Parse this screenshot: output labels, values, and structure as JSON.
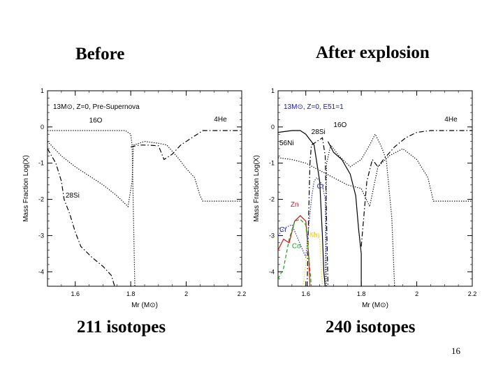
{
  "slide": {
    "before_heading": "Before",
    "after_heading": "After explosion",
    "before_caption": "211 isotopes",
    "after_caption": "240 isotopes",
    "page_number": "16"
  },
  "chart_data": [
    {
      "type": "line",
      "title": "13M⊙, Z=0, Pre-Supernova",
      "xlabel": "Mr (M⊙)",
      "ylabel": "Mass Fraction Log(X)",
      "xlim": [
        1.5,
        2.2
      ],
      "ylim": [
        -4.4,
        1
      ],
      "xticks": [
        1.6,
        1.8,
        2,
        2.2
      ],
      "yticks": [
        1,
        0,
        -1,
        -2,
        -3,
        -4
      ],
      "series": [
        {
          "name": "16O",
          "color": "#000000",
          "dash": "1.3,2",
          "label_at": [
            1.65,
            0.12
          ],
          "points": [
            [
              1.5,
              -0.1
            ],
            [
              1.55,
              -0.1
            ],
            [
              1.6,
              -0.1
            ],
            [
              1.65,
              -0.1
            ],
            [
              1.7,
              -0.1
            ],
            [
              1.75,
              -0.1
            ],
            [
              1.78,
              -0.1
            ],
            [
              1.8,
              -0.2
            ],
            [
              1.805,
              -0.5
            ],
            [
              1.81,
              -2.5
            ],
            [
              1.815,
              -4.5
            ]
          ]
        },
        {
          "name": "4He",
          "color": "#000000",
          "dash": "1.3,2",
          "label_at": [
            2.1,
            0.15
          ],
          "points": [
            [
              1.5,
              -0.4
            ],
            [
              1.55,
              -0.8
            ],
            [
              1.6,
              -1.1
            ],
            [
              1.65,
              -1.35
            ],
            [
              1.7,
              -1.6
            ],
            [
              1.75,
              -1.9
            ],
            [
              1.79,
              -2.2
            ],
            [
              1.805,
              -1.5
            ],
            [
              1.81,
              -0.5
            ],
            [
              1.85,
              -0.4
            ],
            [
              1.9,
              -0.45
            ],
            [
              1.93,
              -0.5
            ],
            [
              1.97,
              -0.85
            ],
            [
              2.0,
              -1.15
            ],
            [
              2.03,
              -1.4
            ],
            [
              2.05,
              -1.9
            ],
            [
              2.06,
              -2.05
            ],
            [
              2.2,
              -2.05
            ]
          ]
        },
        {
          "name": "28Si",
          "color": "#000000",
          "dash": "7,3,1.5,3",
          "label_at": [
            1.565,
            -1.95
          ],
          "points": [
            [
              1.5,
              -0.6
            ],
            [
              1.53,
              -1.0
            ],
            [
              1.55,
              -1.5
            ],
            [
              1.56,
              -2.0
            ],
            [
              1.58,
              -2.4
            ],
            [
              1.6,
              -2.9
            ],
            [
              1.62,
              -3.3
            ],
            [
              1.66,
              -3.6
            ],
            [
              1.7,
              -3.85
            ],
            [
              1.73,
              -4.1
            ],
            [
              1.75,
              -4.6
            ]
          ]
        },
        {
          "name": "",
          "color": "#000000",
          "dash": "7,3,1.5,3",
          "points": [
            [
              1.8,
              -0.55
            ],
            [
              1.83,
              -0.5
            ],
            [
              1.86,
              -0.5
            ],
            [
              1.9,
              -0.52
            ],
            [
              1.92,
              -0.9
            ],
            [
              1.95,
              -0.75
            ],
            [
              1.98,
              -0.5
            ],
            [
              2.02,
              -0.3
            ],
            [
              2.06,
              -0.1
            ],
            [
              2.1,
              -0.1
            ],
            [
              2.2,
              -0.1
            ]
          ]
        }
      ]
    },
    {
      "type": "line",
      "title": "13M⊙, Z=0, E51=1",
      "title_color": "#1515bb",
      "xlabel": "Mr (M⊙)",
      "ylabel": "Mass Fraction Log(X)",
      "xlim": [
        1.5,
        2.2
      ],
      "ylim": [
        -4.4,
        1
      ],
      "xticks": [
        1.6,
        1.8,
        2,
        2.2
      ],
      "yticks": [
        1,
        0,
        -1,
        -2,
        -3,
        -4
      ],
      "series": [
        {
          "name": "56Ni",
          "color": "#000000",
          "dash": "",
          "label_at": [
            1.505,
            -0.5
          ],
          "points": [
            [
              1.5,
              -0.15
            ],
            [
              1.55,
              -0.1
            ],
            [
              1.58,
              -0.1
            ],
            [
              1.6,
              -0.2
            ],
            [
              1.63,
              -0.5
            ],
            [
              1.65,
              -1.5
            ],
            [
              1.66,
              -3.0
            ],
            [
              1.665,
              -4.0
            ],
            [
              1.67,
              -4.4
            ]
          ]
        },
        {
          "name": "28Si",
          "color": "#000000",
          "dash": "7,3,1.5,3",
          "label_at": [
            1.62,
            -0.2
          ],
          "points": [
            [
              1.605,
              -4.4
            ],
            [
              1.61,
              -2.5
            ],
            [
              1.615,
              -1.0
            ],
            [
              1.62,
              -0.5
            ],
            [
              1.64,
              -0.4
            ],
            [
              1.66,
              -0.3
            ],
            [
              1.67,
              -0.8
            ],
            [
              1.68,
              -4.4
            ]
          ]
        },
        {
          "name": "16O",
          "color": "#000000",
          "dash": "1.3,2",
          "label_at": [
            1.7,
            0.0
          ],
          "points": [
            [
              1.67,
              -4.4
            ],
            [
              1.675,
              -1.0
            ],
            [
              1.69,
              -0.5
            ],
            [
              1.72,
              -0.8
            ],
            [
              1.76,
              -1.1
            ],
            [
              1.8,
              -0.9
            ],
            [
              1.83,
              -0.5
            ],
            [
              1.85,
              -0.2
            ],
            [
              1.87,
              -0.5
            ],
            [
              1.89,
              -0.9
            ],
            [
              1.91,
              -2.5
            ],
            [
              1.92,
              -4.4
            ]
          ]
        },
        {
          "name": "4He",
          "color": "#000000",
          "dash": "1.3,2",
          "label_at": [
            2.1,
            0.15
          ],
          "points": [
            [
              1.5,
              -0.85
            ],
            [
              1.55,
              -0.9
            ],
            [
              1.6,
              -1.0
            ],
            [
              1.65,
              -1.2
            ],
            [
              1.7,
              -1.4
            ],
            [
              1.75,
              -1.6
            ],
            [
              1.8,
              -1.7
            ],
            [
              1.83,
              -2.2
            ],
            [
              1.86,
              -1.1
            ],
            [
              1.9,
              -0.8
            ],
            [
              1.95,
              -0.6
            ],
            [
              2.0,
              -0.9
            ],
            [
              2.04,
              -1.4
            ],
            [
              2.06,
              -2.05
            ],
            [
              2.2,
              -2.05
            ]
          ]
        },
        {
          "name": "",
          "color": "#000000",
          "dash": "7,3,1.5,3",
          "points": [
            [
              1.8,
              -3.3
            ],
            [
              1.82,
              -1.5
            ],
            [
              1.84,
              -0.9
            ],
            [
              1.86,
              -1.1
            ],
            [
              1.88,
              -0.9
            ],
            [
              1.92,
              -0.55
            ],
            [
              1.96,
              -0.3
            ],
            [
              2.0,
              -0.15
            ],
            [
              2.05,
              -0.1
            ],
            [
              2.1,
              -0.1
            ],
            [
              2.2,
              -0.1
            ]
          ]
        },
        {
          "name": "",
          "color": "#000000",
          "dash": "",
          "points": [
            [
              1.68,
              -0.4
            ],
            [
              1.7,
              -0.7
            ],
            [
              1.73,
              -0.9
            ],
            [
              1.76,
              -1.3
            ],
            [
              1.78,
              -1.9
            ],
            [
              1.79,
              -2.8
            ],
            [
              1.8,
              -3.5
            ],
            [
              1.8,
              -4.4
            ]
          ]
        },
        {
          "name": "Zn",
          "color": "#dd1111",
          "dash": "",
          "label_at": [
            1.545,
            -2.2
          ],
          "points": [
            [
              1.5,
              -3.4
            ],
            [
              1.52,
              -3.1
            ],
            [
              1.54,
              -3.2
            ],
            [
              1.56,
              -2.6
            ],
            [
              1.58,
              -2.45
            ],
            [
              1.6,
              -2.6
            ],
            [
              1.61,
              -3.5
            ],
            [
              1.615,
              -4.4
            ]
          ]
        },
        {
          "name": "Co",
          "color": "#11aa11",
          "dash": "5,3",
          "label_at": [
            1.55,
            -3.35
          ],
          "points": [
            [
              1.5,
              -4.2
            ],
            [
              1.52,
              -3.9
            ],
            [
              1.54,
              -3.1
            ],
            [
              1.56,
              -2.6
            ],
            [
              1.58,
              -2.55
            ],
            [
              1.6,
              -2.7
            ],
            [
              1.61,
              -3.5
            ],
            [
              1.62,
              -4.4
            ]
          ]
        },
        {
          "name": "Cr",
          "color": "#1515bb",
          "dash": "1.3,2",
          "label_at": [
            1.505,
            -2.9
          ],
          "points": [
            [
              1.5,
              -3.0
            ],
            [
              1.52,
              -2.8
            ],
            [
              1.55,
              -2.7
            ],
            [
              1.6,
              -3.6
            ],
            [
              1.62,
              -2.0
            ],
            [
              1.63,
              -1.5
            ],
            [
              1.64,
              -1.4
            ],
            [
              1.66,
              -1.6
            ],
            [
              1.67,
              -2.0
            ],
            [
              1.675,
              -4.4
            ]
          ]
        },
        {
          "name": "Cr",
          "color": "#1515bb",
          "dash": "1.3,2",
          "label_at": [
            1.64,
            -1.7
          ],
          "points": []
        },
        {
          "name": "Mn",
          "color": "#e6d21a",
          "dash": "1.3,2",
          "label_at": [
            1.615,
            -3.05
          ],
          "points": [
            [
              1.59,
              -4.4
            ],
            [
              1.6,
              -3.8
            ],
            [
              1.61,
              -3.0
            ],
            [
              1.63,
              -2.9
            ],
            [
              1.65,
              -3.1
            ],
            [
              1.66,
              -4.4
            ]
          ]
        }
      ]
    }
  ]
}
